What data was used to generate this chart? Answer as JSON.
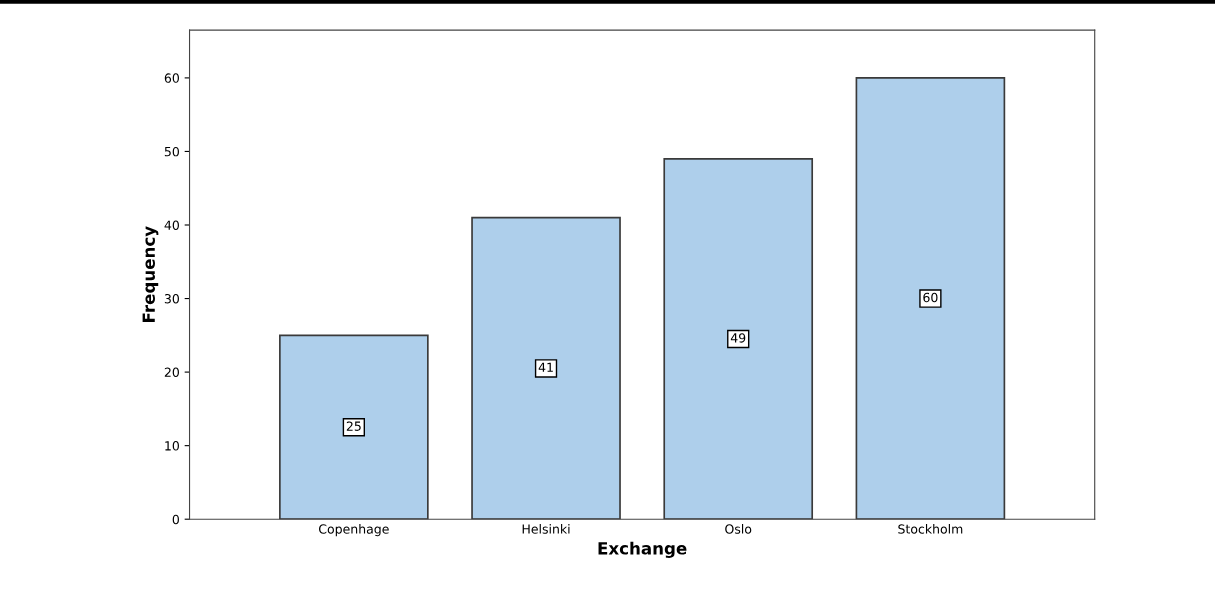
{
  "chart_data": {
    "type": "bar",
    "xlabel": "Exchange",
    "ylabel": "Frequency",
    "categories": [
      "Copenhage",
      "Helsinki",
      "Oslo",
      "Stockholm"
    ],
    "values": [
      25,
      41,
      49,
      60
    ],
    "color": "#aecfeb",
    "ylim": [
      0,
      66.5
    ],
    "yticks": [
      0,
      10,
      20,
      30,
      40,
      50,
      60
    ],
    "grid": false,
    "data_labels": true
  }
}
